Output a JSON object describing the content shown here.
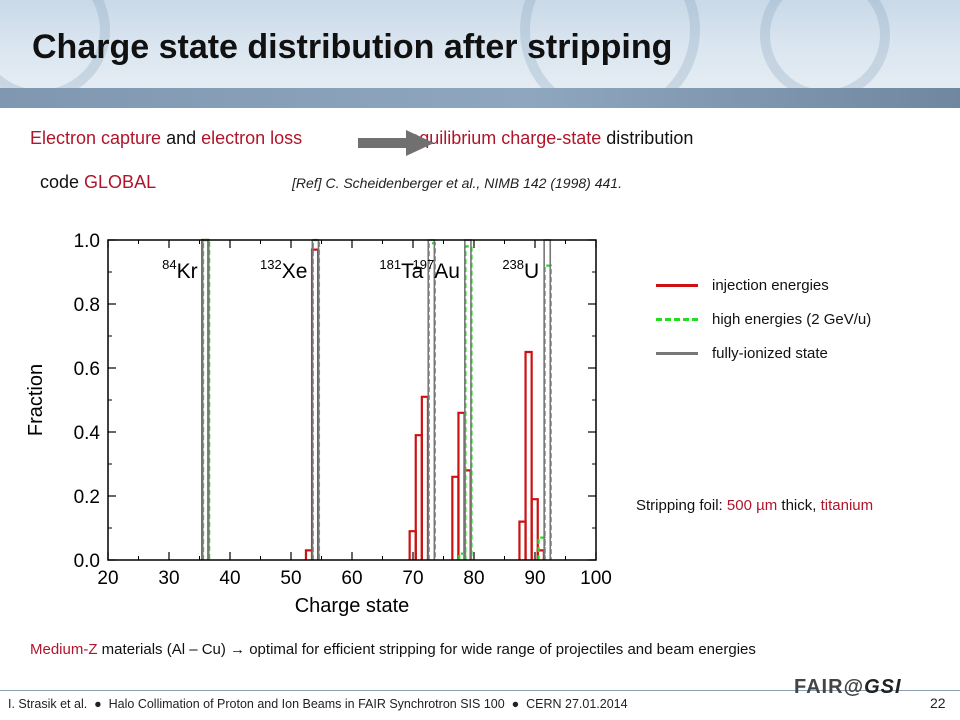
{
  "slide": {
    "title": "Charge state distribution after stripping",
    "intro": {
      "part1": "Electron capture",
      "part2": " and ",
      "part3": "electron loss",
      "part4": "equilibrium charge-state",
      "part5": " distribution"
    },
    "code": {
      "prefix": "code ",
      "name": "GLOBAL"
    },
    "reference": "[Ref] C. Scheidenberger et al., NIMB 142 (1998) 441.",
    "legend": [
      {
        "label": "injection energies",
        "color": "#cc1111",
        "style": "solid"
      },
      {
        "label": "high energies (2 GeV/u)",
        "color": "#22dd22",
        "style": "dashed"
      },
      {
        "label": "fully-ionized state",
        "color": "#777777",
        "style": "solid"
      }
    ],
    "foil": {
      "prefix": "Stripping foil: ",
      "thickness": "500 µm",
      "middle": " thick, ",
      "material": "titanium"
    },
    "conclusion": {
      "highlight": "Medium-Z",
      "text": " materials (Al – Cu) → optimal for efficient stripping for wide range of projectiles and beam energies"
    },
    "footer": "I. Strasik et al.  ●  Halo Collimation of Proton and Ion Beams in FAIR Synchrotron SIS 100  ●  CERN 27.01.2014",
    "page_number": "22",
    "logo": {
      "fair": "FAIR",
      "at": "@",
      "gsi": "GSI"
    }
  },
  "chart_data": {
    "type": "line",
    "xlabel": "Charge state",
    "ylabel": "Fraction",
    "xlim": [
      20,
      100
    ],
    "ylim": [
      0,
      1.0
    ],
    "xticks": [
      "20",
      "30",
      "40",
      "50",
      "60",
      "70",
      "80",
      "90",
      "100"
    ],
    "yticks": [
      "0.0",
      "0.2",
      "0.4",
      "0.6",
      "0.8",
      "1.0"
    ],
    "ions": [
      {
        "mass": "84",
        "symbol": "Kr",
        "Z": 36
      },
      {
        "mass": "132",
        "symbol": "Xe",
        "Z": 54
      },
      {
        "mass": "181",
        "symbol": "Ta",
        "Z": 73
      },
      {
        "mass": "197",
        "symbol": "Au",
        "Z": 79
      },
      {
        "mass": "238",
        "symbol": "U",
        "Z": 92
      }
    ],
    "series": [
      {
        "name": "injection energies",
        "color": "#cc1111",
        "bars": [
          {
            "q": 35,
            "f": 0.0
          },
          {
            "q": 36,
            "f": 1.0
          },
          {
            "q": 53,
            "f": 0.03
          },
          {
            "q": 54,
            "f": 0.97
          },
          {
            "q": 70,
            "f": 0.09
          },
          {
            "q": 71,
            "f": 0.39
          },
          {
            "q": 72,
            "f": 0.51
          },
          {
            "q": 77,
            "f": 0.26
          },
          {
            "q": 78,
            "f": 0.46
          },
          {
            "q": 79,
            "f": 0.28
          },
          {
            "q": 88,
            "f": 0.12
          },
          {
            "q": 89,
            "f": 0.65
          },
          {
            "q": 90,
            "f": 0.19
          },
          {
            "q": 91,
            "f": 0.03
          }
        ]
      },
      {
        "name": "high energies (2 GeV/u)",
        "color": "#22dd22",
        "bars": [
          {
            "q": 36,
            "f": 1.0
          },
          {
            "q": 54,
            "f": 1.0
          },
          {
            "q": 73,
            "f": 0.99
          },
          {
            "q": 78,
            "f": 0.02
          },
          {
            "q": 79,
            "f": 0.98
          },
          {
            "q": 91,
            "f": 0.07
          },
          {
            "q": 92,
            "f": 0.92
          }
        ]
      },
      {
        "name": "fully-ionized state",
        "color": "#777777",
        "bars": [
          {
            "q": 36,
            "f": 1.0
          },
          {
            "q": 54,
            "f": 1.0
          },
          {
            "q": 73,
            "f": 1.0
          },
          {
            "q": 79,
            "f": 1.0
          },
          {
            "q": 92,
            "f": 1.0
          }
        ]
      }
    ]
  }
}
